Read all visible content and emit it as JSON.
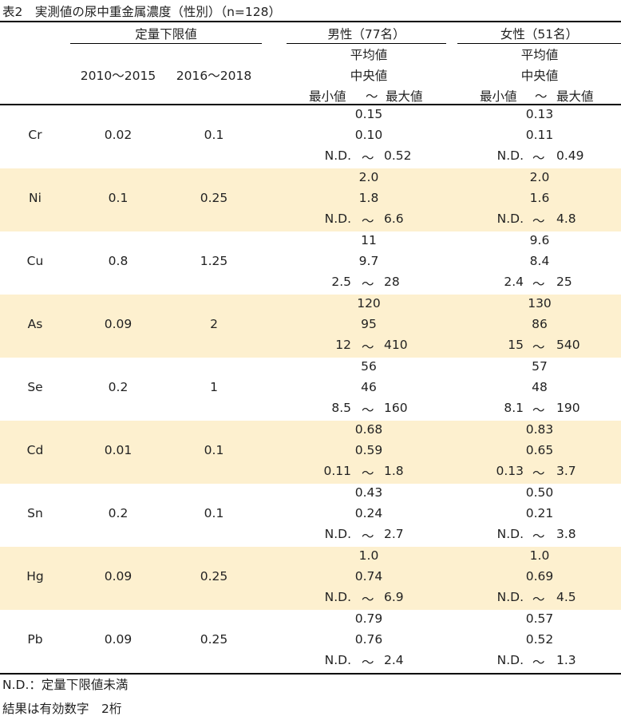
{
  "title": "表2　実測値の尿中重金属濃度（性別）（n=128）",
  "header": {
    "loq_group": "定量下限値",
    "loq_cols": [
      "2010〜2015",
      "2016〜2018"
    ],
    "male_group": "男性（77名）",
    "female_group": "女性（51名）",
    "stat_mean": "平均値",
    "stat_median": "中央値",
    "stat_min": "最小値",
    "stat_tilde": "〜",
    "stat_max": "最大値"
  },
  "rows": [
    {
      "element": "Cr",
      "loq1": "0.02",
      "loq2": "0.1",
      "male": {
        "mean": "0.15",
        "median": "0.10",
        "min": "N.D.",
        "max": "0.52"
      },
      "female": {
        "mean": "0.13",
        "median": "0.11",
        "min": "N.D.",
        "max": "0.49"
      }
    },
    {
      "element": "Ni",
      "loq1": "0.1",
      "loq2": "0.25",
      "male": {
        "mean": "2.0",
        "median": "1.8",
        "min": "N.D.",
        "max": "6.6"
      },
      "female": {
        "mean": "2.0",
        "median": "1.6",
        "min": "N.D.",
        "max": "4.8"
      }
    },
    {
      "element": "Cu",
      "loq1": "0.8",
      "loq2": "1.25",
      "male": {
        "mean": "11",
        "median": "9.7",
        "min": "2.5",
        "max": "28"
      },
      "female": {
        "mean": "9.6",
        "median": "8.4",
        "min": "2.4",
        "max": "25"
      }
    },
    {
      "element": "As",
      "loq1": "0.09",
      "loq2": "2",
      "male": {
        "mean": "120",
        "median": "95",
        "min": "12",
        "max": "410"
      },
      "female": {
        "mean": "130",
        "median": "86",
        "min": "15",
        "max": "540"
      }
    },
    {
      "element": "Se",
      "loq1": "0.2",
      "loq2": "1",
      "male": {
        "mean": "56",
        "median": "46",
        "min": "8.5",
        "max": "160"
      },
      "female": {
        "mean": "57",
        "median": "48",
        "min": "8.1",
        "max": "190"
      }
    },
    {
      "element": "Cd",
      "loq1": "0.01",
      "loq2": "0.1",
      "male": {
        "mean": "0.68",
        "median": "0.59",
        "min": "0.11",
        "max": "1.8"
      },
      "female": {
        "mean": "0.83",
        "median": "0.65",
        "min": "0.13",
        "max": "3.7"
      }
    },
    {
      "element": "Sn",
      "loq1": "0.2",
      "loq2": "0.1",
      "male": {
        "mean": "0.43",
        "median": "0.24",
        "min": "N.D.",
        "max": "2.7"
      },
      "female": {
        "mean": "0.50",
        "median": "0.21",
        "min": "N.D.",
        "max": "3.8"
      }
    },
    {
      "element": "Hg",
      "loq1": "0.09",
      "loq2": "0.25",
      "male": {
        "mean": "1.0",
        "median": "0.74",
        "min": "N.D.",
        "max": "6.9"
      },
      "female": {
        "mean": "1.0",
        "median": "0.69",
        "min": "N.D.",
        "max": "4.5"
      }
    },
    {
      "element": "Pb",
      "loq1": "0.09",
      "loq2": "0.25",
      "male": {
        "mean": "0.79",
        "median": "0.76",
        "min": "N.D.",
        "max": "2.4"
      },
      "female": {
        "mean": "0.57",
        "median": "0.52",
        "min": "N.D.",
        "max": "1.3"
      }
    }
  ],
  "tilde": "〜",
  "notes": [
    "N.D.：定量下限値未満",
    "結果は有効数字　2桁"
  ]
}
